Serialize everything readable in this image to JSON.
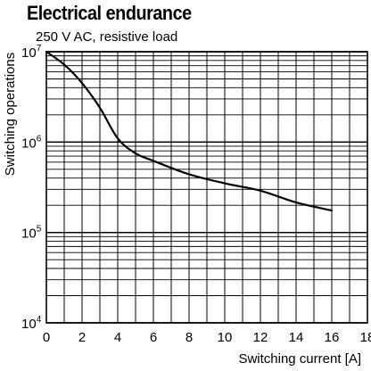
{
  "chart_data": {
    "type": "line",
    "title": "Electrical endurance",
    "subtitle": "250 V AC, resistive load",
    "xlabel": "Switching current [A]",
    "ylabel": "Switching operations",
    "xlim": [
      0,
      18
    ],
    "ylim": [
      10000,
      10000000
    ],
    "yscale": "log",
    "grid": true,
    "x_ticks": [
      "0",
      "2",
      "4",
      "6",
      "8",
      "10",
      "12",
      "14",
      "16",
      "18"
    ],
    "y_ticks": [
      {
        "base": "10",
        "exp": "4",
        "value": 10000
      },
      {
        "base": "10",
        "exp": "5",
        "value": 100000
      },
      {
        "base": "10",
        "exp": "6",
        "value": 1000000
      },
      {
        "base": "10",
        "exp": "7",
        "value": 10000000
      }
    ],
    "series": [
      {
        "color": "#000000",
        "x": [
          0,
          1,
          2,
          3,
          4,
          5,
          6,
          8,
          10,
          12,
          14,
          16
        ],
        "y": [
          10000000,
          7200000,
          4500000,
          2400000,
          1100000,
          750000,
          620000,
          440000,
          350000,
          290000,
          215000,
          175000
        ]
      }
    ]
  }
}
